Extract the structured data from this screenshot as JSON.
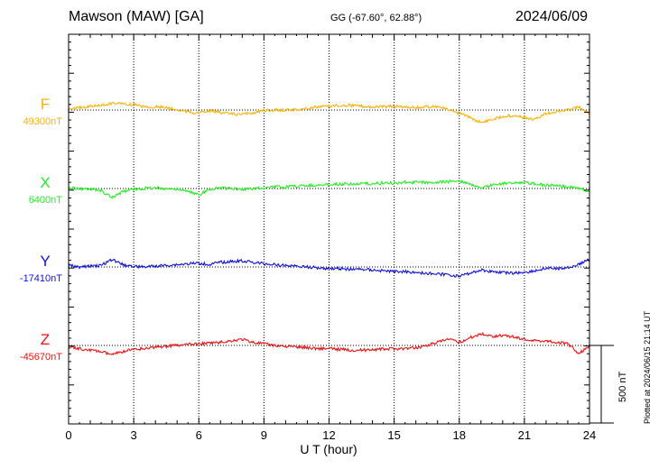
{
  "header": {
    "station": "Mawson (MAW)  [GA]",
    "coords": "GG (-67.60°,  62.88°)",
    "date": "2024/06/09"
  },
  "plotted_note": "Plotted at 2024/06/15 21:14 UT",
  "scale_label": "500 nT",
  "chart_data": {
    "type": "line",
    "title": "Mawson (MAW)  [GA]",
    "xlabel": "U T (hour)",
    "ylabel": "",
    "xlim": [
      0,
      24
    ],
    "x_ticks": [
      "0",
      "3",
      "6",
      "9",
      "12",
      "15",
      "18",
      "21",
      "24"
    ],
    "grid": true,
    "scale_bar_nT": 500,
    "series": [
      {
        "name": "F",
        "baseline_label": "49300nT",
        "baseline_nT": 49300,
        "color": "#f5b20a",
        "x": [
          0,
          0.5,
          1,
          1.5,
          2,
          2.5,
          3,
          3.5,
          4,
          4.5,
          5,
          5.5,
          6,
          6.5,
          7,
          7.5,
          8,
          8.5,
          9,
          9.5,
          10,
          10.5,
          11,
          11.5,
          12,
          12.5,
          13,
          13.5,
          14,
          14.5,
          15,
          15.5,
          16,
          16.5,
          17,
          17.5,
          18,
          18.5,
          19,
          19.5,
          20,
          20.5,
          21,
          21.5,
          22,
          22.5,
          23,
          23.5,
          24
        ],
        "values": [
          49310,
          49315,
          49325,
          49330,
          49345,
          49340,
          49335,
          49320,
          49320,
          49315,
          49300,
          49290,
          49280,
          49295,
          49285,
          49275,
          49270,
          49285,
          49295,
          49300,
          49300,
          49305,
          49310,
          49320,
          49325,
          49330,
          49330,
          49325,
          49320,
          49320,
          49325,
          49320,
          49315,
          49320,
          49325,
          49300,
          49280,
          49250,
          49220,
          49240,
          49260,
          49265,
          49250,
          49240,
          49280,
          49290,
          49300,
          49320,
          49270
        ]
      },
      {
        "name": "X",
        "baseline_label": "6400nT",
        "baseline_nT": 6400,
        "color": "#22ee22",
        "x": [
          0,
          0.5,
          1,
          1.5,
          2,
          2.5,
          3,
          3.5,
          4,
          4.5,
          5,
          5.5,
          6,
          6.5,
          7,
          7.5,
          8,
          8.5,
          9,
          9.5,
          10,
          10.5,
          11,
          11.5,
          12,
          12.5,
          13,
          13.5,
          14,
          14.5,
          15,
          15.5,
          16,
          16.5,
          17,
          17.5,
          18,
          18.5,
          19,
          19.5,
          20,
          20.5,
          21,
          21.5,
          22,
          22.5,
          23,
          23.5,
          24
        ],
        "values": [
          6405,
          6400,
          6395,
          6385,
          6340,
          6380,
          6395,
          6400,
          6405,
          6400,
          6395,
          6380,
          6360,
          6395,
          6405,
          6400,
          6395,
          6400,
          6405,
          6410,
          6410,
          6415,
          6420,
          6420,
          6425,
          6430,
          6430,
          6430,
          6430,
          6435,
          6435,
          6440,
          6440,
          6440,
          6440,
          6445,
          6450,
          6430,
          6400,
          6425,
          6430,
          6440,
          6440,
          6430,
          6420,
          6420,
          6410,
          6405,
          6380
        ]
      },
      {
        "name": "Y",
        "baseline_label": "-17410nT",
        "baseline_nT": -17410,
        "color": "#1111dd",
        "x": [
          0,
          0.5,
          1,
          1.5,
          2,
          2.5,
          3,
          3.5,
          4,
          4.5,
          5,
          5.5,
          6,
          6.5,
          7,
          7.5,
          8,
          8.5,
          9,
          9.5,
          10,
          10.5,
          11,
          11.5,
          12,
          12.5,
          13,
          13.5,
          14,
          14.5,
          15,
          15.5,
          16,
          16.5,
          17,
          17.5,
          18,
          18.5,
          19,
          19.5,
          20,
          20.5,
          21,
          21.5,
          22,
          22.5,
          23,
          23.5,
          24
        ],
        "values": [
          -17400,
          -17410,
          -17405,
          -17400,
          -17360,
          -17395,
          -17405,
          -17410,
          -17405,
          -17400,
          -17395,
          -17390,
          -17385,
          -17395,
          -17380,
          -17375,
          -17370,
          -17380,
          -17390,
          -17395,
          -17400,
          -17405,
          -17410,
          -17415,
          -17420,
          -17420,
          -17425,
          -17425,
          -17430,
          -17435,
          -17440,
          -17440,
          -17445,
          -17450,
          -17455,
          -17460,
          -17470,
          -17450,
          -17430,
          -17440,
          -17445,
          -17450,
          -17445,
          -17435,
          -17420,
          -17420,
          -17415,
          -17395,
          -17360
        ]
      },
      {
        "name": "Z",
        "baseline_label": "-45670nT",
        "baseline_nT": -45670,
        "color": "#ee1111",
        "x": [
          0,
          0.5,
          1,
          1.5,
          2,
          2.5,
          3,
          3.5,
          4,
          4.5,
          5,
          5.5,
          6,
          6.5,
          7,
          7.5,
          8,
          8.5,
          9,
          9.5,
          10,
          10.5,
          11,
          11.5,
          12,
          12.5,
          13,
          13.5,
          14,
          14.5,
          15,
          15.5,
          16,
          16.5,
          17,
          17.5,
          18,
          18.5,
          19,
          19.5,
          20,
          20.5,
          21,
          21.5,
          22,
          22.5,
          23,
          23.5,
          24
        ],
        "values": [
          -45680,
          -45690,
          -45700,
          -45710,
          -45730,
          -45710,
          -45695,
          -45690,
          -45680,
          -45675,
          -45670,
          -45665,
          -45660,
          -45655,
          -45650,
          -45640,
          -45630,
          -45650,
          -45660,
          -45670,
          -45675,
          -45680,
          -45685,
          -45690,
          -45690,
          -45695,
          -45700,
          -45700,
          -45695,
          -45695,
          -45690,
          -45690,
          -45685,
          -45670,
          -45650,
          -45630,
          -45650,
          -45620,
          -45595,
          -45610,
          -45605,
          -45615,
          -45630,
          -45640,
          -45640,
          -45650,
          -45660,
          -45720,
          -45680
        ]
      }
    ]
  }
}
